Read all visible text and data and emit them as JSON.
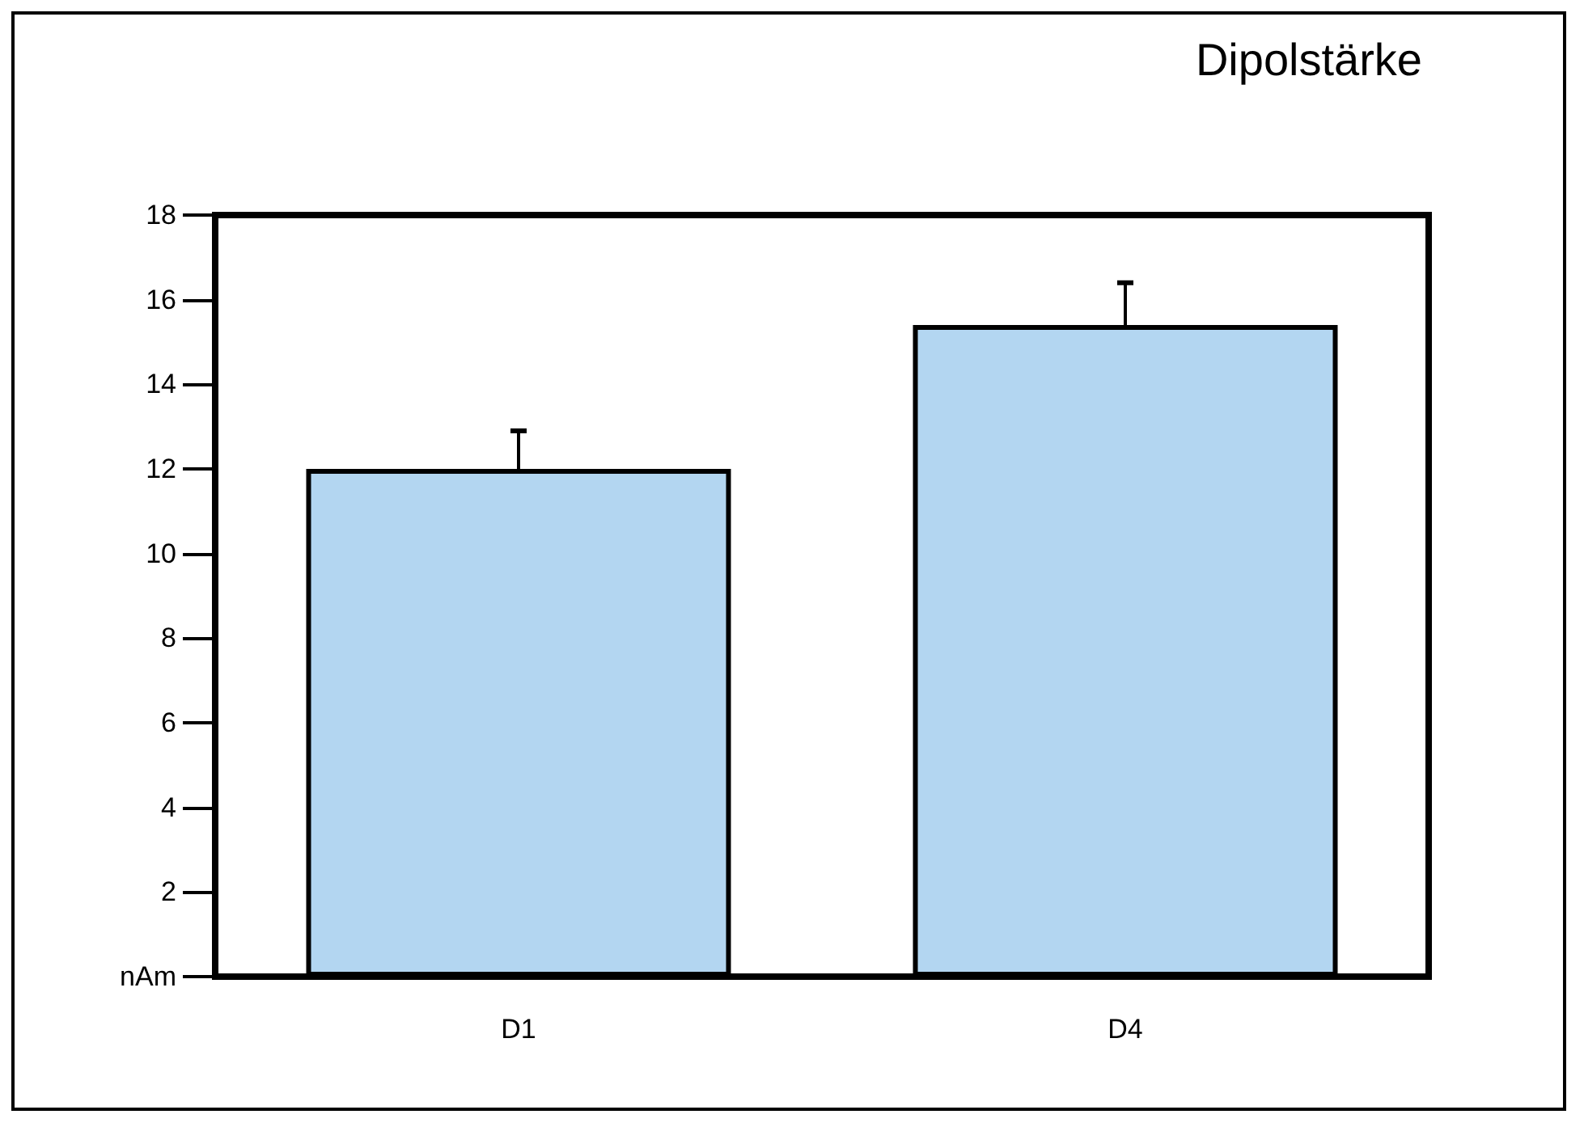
{
  "chart_data": {
    "type": "bar",
    "title": "Dipolstärke",
    "categories": [
      "D1",
      "D4"
    ],
    "values": [
      12.0,
      15.4
    ],
    "color": "#b3d6f1",
    "errors": [
      [
        12.0,
        12.9
      ],
      [
        15.4,
        16.4
      ]
    ],
    "ylim": [
      0,
      18
    ],
    "yticks": [
      {
        "value": 0,
        "label": "nAm"
      },
      2,
      4,
      6,
      8,
      10,
      12,
      14,
      16,
      18
    ],
    "grid": false
  }
}
